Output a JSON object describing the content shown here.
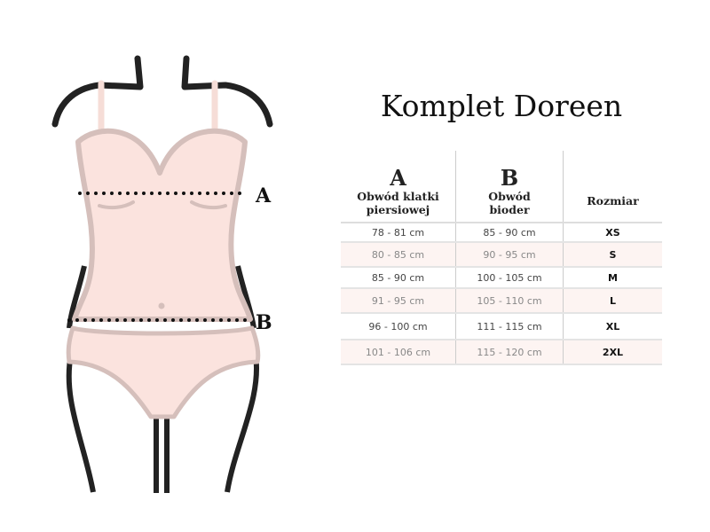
{
  "title": "Komplet Doreen",
  "figure": {
    "label_a": "A",
    "label_b": "B"
  },
  "table": {
    "headers": [
      {
        "letter": "A",
        "label_line1": "Obwód klatki",
        "label_line2": "piersiowej"
      },
      {
        "letter": "B",
        "label_line1": "Obwód",
        "label_line2": "bioder"
      },
      {
        "label": "Rozmiar"
      }
    ],
    "rows": [
      {
        "a": "78 - 81 cm",
        "b": "85 - 90 cm",
        "size": "XS"
      },
      {
        "a": "80 - 85 cm",
        "b": "90 - 95 cm",
        "size": "S"
      },
      {
        "a": "85 - 90 cm",
        "b": "100 - 105 cm",
        "size": "M"
      },
      {
        "a": "91 - 95 cm",
        "b": "105 - 110 cm",
        "size": "L"
      },
      {
        "a": "96 - 100 cm",
        "b": "111 - 115 cm",
        "size": "XL"
      },
      {
        "a": "101 - 106 cm",
        "b": "115 - 120 cm",
        "size": "2XL"
      }
    ]
  },
  "colors": {
    "garment": "#fbe3de",
    "outline": "#d5bfbb",
    "body_lines": "#222222",
    "alt_row": "#fdf4f2"
  }
}
